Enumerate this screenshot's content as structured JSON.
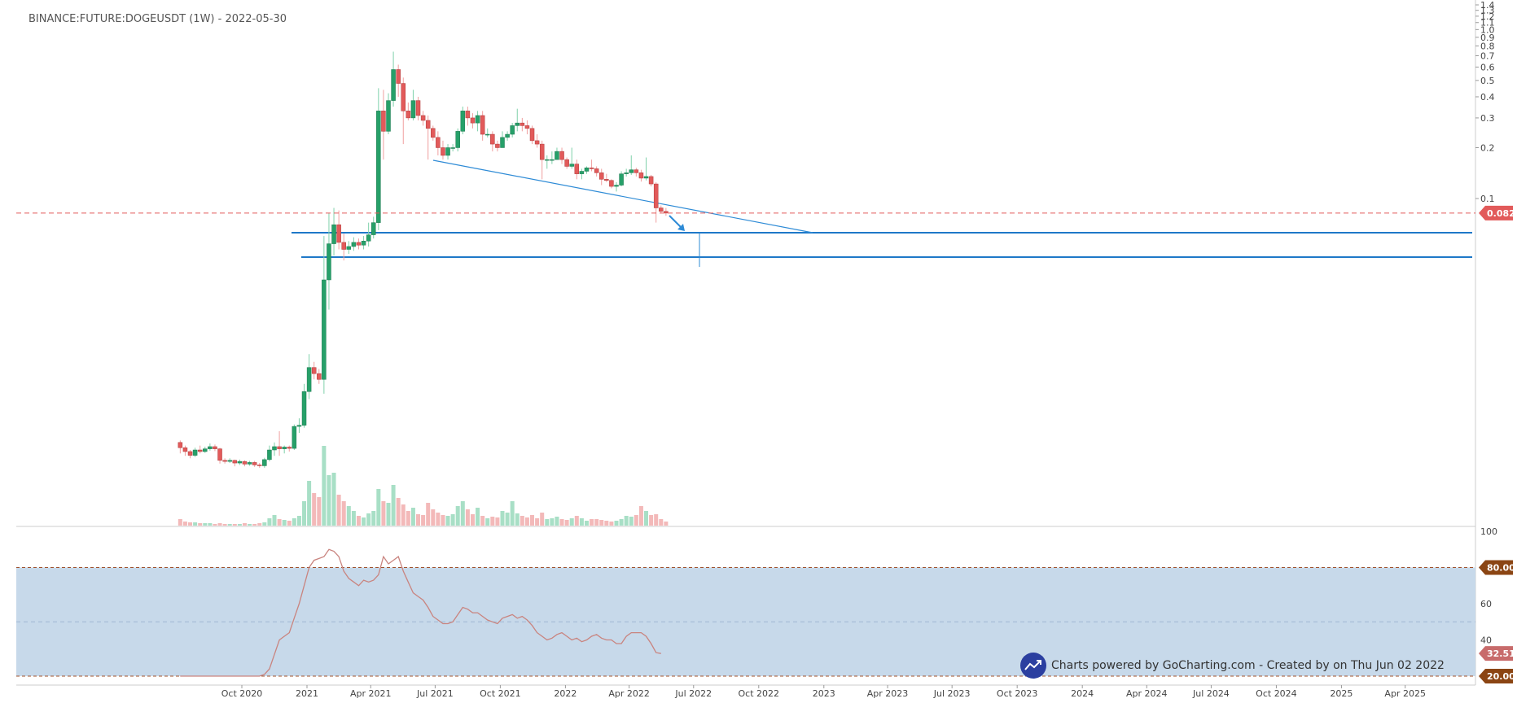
{
  "header": {
    "symbol_title": "BINANCE:FUTURE:DOGEUSDT (1W) - 2022-05-30"
  },
  "credit": {
    "text": "Charts powered by GoCharting.com - Created by  on Thu Jun 02 2022"
  },
  "colors": {
    "up": "#26a069",
    "down": "#e25a5a",
    "up_volume": "#a8dfc6",
    "down_volume": "#f3b9b9",
    "trendline": "#2e8bd6",
    "level_line": "#1e78c8",
    "price_line": "#e25a5a",
    "rsi_line": "#c9847f",
    "rsi_band": "#c7d9ea",
    "rsi_bound": "#a0522d",
    "rsi_bound_label": "#8b4513"
  },
  "chart_data": [
    {
      "type": "candlestick",
      "title": "BINANCE:FUTURE:DOGEUSDT (1W) - 2022-05-30",
      "y_scale": "log",
      "ylim": [
        0.0015,
        1.4
      ],
      "y_ticks": [
        "1.4",
        "1.3",
        "1.2",
        "1.1",
        "1.0",
        "0.9",
        "0.8",
        "0.7",
        "0.6",
        "0.5",
        "0.4",
        "0.3",
        "0.2",
        "0.1"
      ],
      "x_ticks": [
        "Oct 2020",
        "2021",
        "Apr 2021",
        "Jul 2021",
        "Oct 2021",
        "2022",
        "Apr 2022",
        "Jul 2022",
        "Oct 2022",
        "2023",
        "Apr 2023",
        "Jul 2023",
        "Oct 2023",
        "2024",
        "Apr 2024",
        "Jul 2024",
        "Oct 2024",
        "2025",
        "Apr 2025"
      ],
      "last_price": 0.082,
      "last_price_label": "0.082",
      "candles": [
        {
          "t": "2020-07-06",
          "o": 0.0036,
          "h": 0.0037,
          "l": 0.0031,
          "c": 0.00335
        },
        {
          "t": "2020-07-13",
          "o": 0.00335,
          "h": 0.00345,
          "l": 0.003,
          "c": 0.00318
        },
        {
          "t": "2020-07-20",
          "o": 0.00318,
          "h": 0.00325,
          "l": 0.0029,
          "c": 0.00302
        },
        {
          "t": "2020-07-27",
          "o": 0.00302,
          "h": 0.00335,
          "l": 0.00295,
          "c": 0.00325
        },
        {
          "t": "2020-08-03",
          "o": 0.00325,
          "h": 0.00345,
          "l": 0.0031,
          "c": 0.00318
        },
        {
          "t": "2020-08-10",
          "o": 0.00318,
          "h": 0.0034,
          "l": 0.00312,
          "c": 0.0033
        },
        {
          "t": "2020-08-17",
          "o": 0.0033,
          "h": 0.00355,
          "l": 0.00322,
          "c": 0.0034
        },
        {
          "t": "2020-08-24",
          "o": 0.0034,
          "h": 0.0035,
          "l": 0.0032,
          "c": 0.0033
        },
        {
          "t": "2020-08-31",
          "o": 0.0033,
          "h": 0.00335,
          "l": 0.0027,
          "c": 0.00282
        },
        {
          "t": "2020-09-07",
          "o": 0.00282,
          "h": 0.0029,
          "l": 0.0027,
          "c": 0.00278
        },
        {
          "t": "2020-09-14",
          "o": 0.00278,
          "h": 0.0029,
          "l": 0.00272,
          "c": 0.00282
        },
        {
          "t": "2020-09-21",
          "o": 0.00282,
          "h": 0.00285,
          "l": 0.0026,
          "c": 0.00272
        },
        {
          "t": "2020-09-28",
          "o": 0.00272,
          "h": 0.00285,
          "l": 0.00265,
          "c": 0.00278
        },
        {
          "t": "2020-10-05",
          "o": 0.00278,
          "h": 0.00282,
          "l": 0.0026,
          "c": 0.00268
        },
        {
          "t": "2020-10-12",
          "o": 0.00268,
          "h": 0.0028,
          "l": 0.00262,
          "c": 0.00274
        },
        {
          "t": "2020-10-19",
          "o": 0.00274,
          "h": 0.0028,
          "l": 0.00258,
          "c": 0.00265
        },
        {
          "t": "2020-10-26",
          "o": 0.00265,
          "h": 0.00272,
          "l": 0.00255,
          "c": 0.00262
        },
        {
          "t": "2020-11-02",
          "o": 0.00262,
          "h": 0.00292,
          "l": 0.00255,
          "c": 0.00285
        },
        {
          "t": "2020-11-09",
          "o": 0.00285,
          "h": 0.00345,
          "l": 0.00278,
          "c": 0.00325
        },
        {
          "t": "2020-11-16",
          "o": 0.00325,
          "h": 0.0036,
          "l": 0.003,
          "c": 0.0034
        },
        {
          "t": "2020-11-23",
          "o": 0.0034,
          "h": 0.0042,
          "l": 0.003,
          "c": 0.0033
        },
        {
          "t": "2020-11-30",
          "o": 0.0033,
          "h": 0.00345,
          "l": 0.0031,
          "c": 0.00338
        },
        {
          "t": "2020-12-07",
          "o": 0.00338,
          "h": 0.00345,
          "l": 0.00318,
          "c": 0.00332
        },
        {
          "t": "2020-12-14",
          "o": 0.00332,
          "h": 0.0046,
          "l": 0.00325,
          "c": 0.00448
        },
        {
          "t": "2020-12-21",
          "o": 0.00448,
          "h": 0.005,
          "l": 0.0041,
          "c": 0.00455
        },
        {
          "t": "2020-12-28",
          "o": 0.00455,
          "h": 0.008,
          "l": 0.0044,
          "c": 0.0072
        },
        {
          "t": "2021-01-04",
          "o": 0.0072,
          "h": 0.012,
          "l": 0.0065,
          "c": 0.01
        },
        {
          "t": "2021-01-11",
          "o": 0.01,
          "h": 0.0108,
          "l": 0.0085,
          "c": 0.0092
        },
        {
          "t": "2021-01-18",
          "o": 0.0092,
          "h": 0.0098,
          "l": 0.008,
          "c": 0.0085
        },
        {
          "t": "2021-01-25",
          "o": 0.0085,
          "h": 0.06,
          "l": 0.007,
          "c": 0.033
        },
        {
          "t": "2021-02-01",
          "o": 0.033,
          "h": 0.082,
          "l": 0.022,
          "c": 0.054
        },
        {
          "t": "2021-02-08",
          "o": 0.054,
          "h": 0.088,
          "l": 0.046,
          "c": 0.07
        },
        {
          "t": "2021-02-15",
          "o": 0.07,
          "h": 0.085,
          "l": 0.05,
          "c": 0.055
        },
        {
          "t": "2021-02-22",
          "o": 0.055,
          "h": 0.062,
          "l": 0.043,
          "c": 0.05
        },
        {
          "t": "2021-03-01",
          "o": 0.05,
          "h": 0.056,
          "l": 0.047,
          "c": 0.052
        },
        {
          "t": "2021-03-08",
          "o": 0.052,
          "h": 0.059,
          "l": 0.049,
          "c": 0.055
        },
        {
          "t": "2021-03-15",
          "o": 0.055,
          "h": 0.058,
          "l": 0.05,
          "c": 0.053
        },
        {
          "t": "2021-03-22",
          "o": 0.053,
          "h": 0.06,
          "l": 0.05,
          "c": 0.056
        },
        {
          "t": "2021-03-29",
          "o": 0.056,
          "h": 0.072,
          "l": 0.052,
          "c": 0.061
        },
        {
          "t": "2021-04-05",
          "o": 0.061,
          "h": 0.078,
          "l": 0.058,
          "c": 0.072
        },
        {
          "t": "2021-04-12",
          "o": 0.072,
          "h": 0.45,
          "l": 0.065,
          "c": 0.33
        },
        {
          "t": "2021-04-19",
          "o": 0.33,
          "h": 0.44,
          "l": 0.17,
          "c": 0.25
        },
        {
          "t": "2021-04-26",
          "o": 0.25,
          "h": 0.42,
          "l": 0.24,
          "c": 0.38
        },
        {
          "t": "2021-05-03",
          "o": 0.38,
          "h": 0.74,
          "l": 0.35,
          "c": 0.58
        },
        {
          "t": "2021-05-10",
          "o": 0.58,
          "h": 0.62,
          "l": 0.4,
          "c": 0.48
        },
        {
          "t": "2021-05-17",
          "o": 0.48,
          "h": 0.52,
          "l": 0.21,
          "c": 0.33
        },
        {
          "t": "2021-05-24",
          "o": 0.33,
          "h": 0.37,
          "l": 0.29,
          "c": 0.3
        },
        {
          "t": "2021-05-31",
          "o": 0.3,
          "h": 0.44,
          "l": 0.29,
          "c": 0.38
        },
        {
          "t": "2021-06-07",
          "o": 0.38,
          "h": 0.4,
          "l": 0.29,
          "c": 0.31
        },
        {
          "t": "2021-06-14",
          "o": 0.31,
          "h": 0.33,
          "l": 0.27,
          "c": 0.29
        },
        {
          "t": "2021-06-21",
          "o": 0.29,
          "h": 0.31,
          "l": 0.17,
          "c": 0.26
        },
        {
          "t": "2021-06-28",
          "o": 0.26,
          "h": 0.27,
          "l": 0.22,
          "c": 0.23
        },
        {
          "t": "2021-07-05",
          "o": 0.23,
          "h": 0.25,
          "l": 0.18,
          "c": 0.2
        },
        {
          "t": "2021-07-12",
          "o": 0.2,
          "h": 0.22,
          "l": 0.17,
          "c": 0.18
        },
        {
          "t": "2021-07-19",
          "o": 0.18,
          "h": 0.21,
          "l": 0.17,
          "c": 0.2
        },
        {
          "t": "2021-07-26",
          "o": 0.2,
          "h": 0.21,
          "l": 0.19,
          "c": 0.2
        },
        {
          "t": "2021-08-02",
          "o": 0.2,
          "h": 0.26,
          "l": 0.19,
          "c": 0.25
        },
        {
          "t": "2021-08-09",
          "o": 0.25,
          "h": 0.35,
          "l": 0.24,
          "c": 0.33
        },
        {
          "t": "2021-08-16",
          "o": 0.33,
          "h": 0.35,
          "l": 0.27,
          "c": 0.3
        },
        {
          "t": "2021-08-23",
          "o": 0.3,
          "h": 0.32,
          "l": 0.26,
          "c": 0.28
        },
        {
          "t": "2021-08-30",
          "o": 0.28,
          "h": 0.33,
          "l": 0.25,
          "c": 0.31
        },
        {
          "t": "2021-09-06",
          "o": 0.31,
          "h": 0.33,
          "l": 0.22,
          "c": 0.24
        },
        {
          "t": "2021-09-13",
          "o": 0.24,
          "h": 0.26,
          "l": 0.23,
          "c": 0.24
        },
        {
          "t": "2021-09-20",
          "o": 0.24,
          "h": 0.25,
          "l": 0.19,
          "c": 0.21
        },
        {
          "t": "2021-09-27",
          "o": 0.21,
          "h": 0.22,
          "l": 0.19,
          "c": 0.2
        },
        {
          "t": "2021-10-04",
          "o": 0.2,
          "h": 0.25,
          "l": 0.2,
          "c": 0.23
        },
        {
          "t": "2021-10-11",
          "o": 0.23,
          "h": 0.25,
          "l": 0.22,
          "c": 0.24
        },
        {
          "t": "2021-10-18",
          "o": 0.24,
          "h": 0.28,
          "l": 0.23,
          "c": 0.27
        },
        {
          "t": "2021-10-25",
          "o": 0.27,
          "h": 0.34,
          "l": 0.25,
          "c": 0.28
        },
        {
          "t": "2021-11-01",
          "o": 0.28,
          "h": 0.3,
          "l": 0.25,
          "c": 0.27
        },
        {
          "t": "2021-11-08",
          "o": 0.27,
          "h": 0.29,
          "l": 0.24,
          "c": 0.26
        },
        {
          "t": "2021-11-15",
          "o": 0.26,
          "h": 0.27,
          "l": 0.21,
          "c": 0.22
        },
        {
          "t": "2021-11-22",
          "o": 0.22,
          "h": 0.24,
          "l": 0.2,
          "c": 0.21
        },
        {
          "t": "2021-11-29",
          "o": 0.21,
          "h": 0.22,
          "l": 0.13,
          "c": 0.17
        },
        {
          "t": "2021-12-06",
          "o": 0.17,
          "h": 0.18,
          "l": 0.15,
          "c": 0.17
        },
        {
          "t": "2021-12-13",
          "o": 0.17,
          "h": 0.19,
          "l": 0.16,
          "c": 0.17
        },
        {
          "t": "2021-12-20",
          "o": 0.17,
          "h": 0.2,
          "l": 0.17,
          "c": 0.19
        },
        {
          "t": "2021-12-27",
          "o": 0.19,
          "h": 0.2,
          "l": 0.16,
          "c": 0.17
        },
        {
          "t": "2022-01-03",
          "o": 0.17,
          "h": 0.175,
          "l": 0.15,
          "c": 0.155
        },
        {
          "t": "2022-01-10",
          "o": 0.155,
          "h": 0.2,
          "l": 0.15,
          "c": 0.16
        },
        {
          "t": "2022-01-17",
          "o": 0.16,
          "h": 0.17,
          "l": 0.13,
          "c": 0.14
        },
        {
          "t": "2022-01-24",
          "o": 0.14,
          "h": 0.15,
          "l": 0.13,
          "c": 0.145
        },
        {
          "t": "2022-01-31",
          "o": 0.145,
          "h": 0.155,
          "l": 0.14,
          "c": 0.152
        },
        {
          "t": "2022-02-07",
          "o": 0.152,
          "h": 0.17,
          "l": 0.145,
          "c": 0.15
        },
        {
          "t": "2022-02-14",
          "o": 0.15,
          "h": 0.155,
          "l": 0.135,
          "c": 0.142
        },
        {
          "t": "2022-02-21",
          "o": 0.142,
          "h": 0.15,
          "l": 0.12,
          "c": 0.13
        },
        {
          "t": "2022-02-28",
          "o": 0.13,
          "h": 0.14,
          "l": 0.125,
          "c": 0.128
        },
        {
          "t": "2022-03-07",
          "o": 0.128,
          "h": 0.13,
          "l": 0.115,
          "c": 0.118
        },
        {
          "t": "2022-03-14",
          "o": 0.118,
          "h": 0.125,
          "l": 0.11,
          "c": 0.12
        },
        {
          "t": "2022-03-21",
          "o": 0.12,
          "h": 0.145,
          "l": 0.118,
          "c": 0.14
        },
        {
          "t": "2022-03-28",
          "o": 0.14,
          "h": 0.15,
          "l": 0.135,
          "c": 0.142
        },
        {
          "t": "2022-04-04",
          "o": 0.142,
          "h": 0.18,
          "l": 0.138,
          "c": 0.148
        },
        {
          "t": "2022-04-11",
          "o": 0.148,
          "h": 0.152,
          "l": 0.135,
          "c": 0.142
        },
        {
          "t": "2022-04-18",
          "o": 0.142,
          "h": 0.148,
          "l": 0.126,
          "c": 0.132
        },
        {
          "t": "2022-04-25",
          "o": 0.132,
          "h": 0.175,
          "l": 0.128,
          "c": 0.135
        },
        {
          "t": "2022-05-02",
          "o": 0.135,
          "h": 0.138,
          "l": 0.118,
          "c": 0.122
        },
        {
          "t": "2022-05-09",
          "o": 0.122,
          "h": 0.125,
          "l": 0.072,
          "c": 0.088
        },
        {
          "t": "2022-05-16",
          "o": 0.088,
          "h": 0.091,
          "l": 0.082,
          "c": 0.084
        },
        {
          "t": "2022-05-23",
          "o": 0.084,
          "h": 0.088,
          "l": 0.079,
          "c": 0.082
        }
      ],
      "volume": [
        8,
        5,
        4,
        4,
        3,
        3,
        3,
        2,
        3,
        2,
        2,
        2,
        2,
        3,
        2,
        2,
        3,
        4,
        9,
        13,
        8,
        7,
        6,
        9,
        12,
        30,
        55,
        40,
        35,
        98,
        62,
        65,
        38,
        30,
        24,
        18,
        12,
        10,
        15,
        18,
        45,
        30,
        28,
        50,
        34,
        26,
        18,
        22,
        14,
        13,
        28,
        20,
        16,
        13,
        12,
        14,
        24,
        30,
        20,
        14,
        22,
        12,
        9,
        11,
        10,
        18,
        16,
        30,
        15,
        12,
        10,
        13,
        9,
        16,
        8,
        9,
        11,
        8,
        7,
        9,
        12,
        9,
        6,
        8,
        8,
        7,
        6,
        5,
        6,
        8,
        12,
        11,
        13,
        24,
        18,
        13,
        14,
        8,
        5
      ],
      "volume_unit": "relative"
    },
    {
      "type": "line",
      "indicator": "RSI",
      "ylim": [
        0,
        100
      ],
      "y_ticks": [
        "100",
        "80.00",
        "60",
        "40",
        "32.51",
        "20.00"
      ],
      "overbought": 80,
      "overbought_label": "80.00",
      "oversold": 20,
      "oversold_label": "20.00",
      "last_value": 32.51,
      "last_value_label": "32.51",
      "values": [
        20,
        20,
        20,
        20,
        20,
        20,
        20,
        20,
        20,
        20,
        20,
        20,
        20,
        20,
        20,
        20,
        20,
        21,
        24,
        32,
        40,
        42,
        44,
        52,
        60,
        70,
        80,
        84,
        85,
        86,
        90,
        89,
        86,
        78,
        74,
        72,
        70,
        73,
        72,
        73,
        76,
        86,
        82,
        84,
        86,
        78,
        72,
        66,
        64,
        62,
        58,
        53,
        51,
        49,
        49,
        50,
        54,
        58,
        57,
        55,
        55,
        53,
        51,
        50,
        49,
        52,
        53,
        54,
        52,
        53,
        51,
        48,
        44,
        42,
        40,
        41,
        43,
        44,
        42,
        40,
        41,
        39,
        40,
        42,
        43,
        41,
        40,
        40,
        38,
        38,
        42,
        44,
        44,
        44,
        42,
        38,
        33,
        32.51
      ]
    }
  ]
}
